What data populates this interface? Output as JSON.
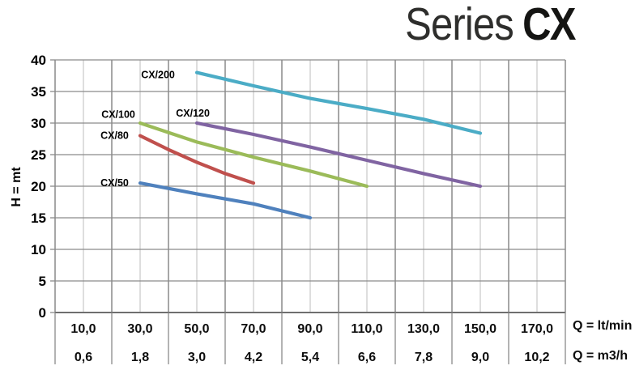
{
  "page_title": {
    "regular": "Series",
    "bold": "CX"
  },
  "chart_data": {
    "type": "line",
    "title": "Series CX",
    "ylabel": "H = mt",
    "xlabel": "Q",
    "x_axis": {
      "min": 0,
      "max": 180,
      "minor_step": 10,
      "major_step": 20
    },
    "y_axis": {
      "min": 0,
      "max": 40,
      "step": 5,
      "tick_labels": [
        "0",
        "5",
        "10",
        "15",
        "20",
        "25",
        "30",
        "35",
        "40"
      ]
    },
    "x_tick_rows": [
      {
        "unit": "Q = lt/min",
        "values": [
          10,
          30,
          50,
          70,
          90,
          110,
          130,
          150,
          170
        ],
        "labels": [
          "10,0",
          "30,0",
          "50,0",
          "70,0",
          "90,0",
          "110,0",
          "130,0",
          "150,0",
          "170,0"
        ]
      },
      {
        "unit": "Q = m3/h",
        "values": [
          0.6,
          1.8,
          3.0,
          4.2,
          5.4,
          6.6,
          7.8,
          9.0,
          10.2
        ],
        "labels": [
          "0,6",
          "1,8",
          "3,0",
          "4,2",
          "5,4",
          "6,6",
          "7,8",
          "9,0",
          "10,2"
        ]
      }
    ],
    "grid": {
      "major_color": "#8a8a8a",
      "minor_color": "#c4c4c4",
      "axis_color": "#6f6f6f"
    },
    "series": [
      {
        "name": "CX/50",
        "color": "#4F81BD",
        "label_at": [
          21,
          20.6
        ],
        "points": [
          [
            30,
            20.5
          ],
          [
            50,
            18.8
          ],
          [
            70,
            17.2
          ],
          [
            90,
            15
          ]
        ]
      },
      {
        "name": "CX/80",
        "color": "#C0504D",
        "label_at": [
          21,
          28.1
        ],
        "points": [
          [
            30,
            28
          ],
          [
            40,
            25.8
          ],
          [
            50,
            23.8
          ],
          [
            60,
            22
          ],
          [
            70,
            20.5
          ]
        ]
      },
      {
        "name": "CX/100",
        "color": "#9BBB59",
        "label_at": [
          22.3,
          31.4
        ],
        "points": [
          [
            30,
            30
          ],
          [
            50,
            27
          ],
          [
            70,
            24.6
          ],
          [
            90,
            22.4
          ],
          [
            110,
            20
          ]
        ]
      },
      {
        "name": "CX/120",
        "color": "#8064A2",
        "label_at": [
          48.6,
          31.6
        ],
        "points": [
          [
            50,
            30
          ],
          [
            70,
            28.2
          ],
          [
            90,
            26.2
          ],
          [
            110,
            24.1
          ],
          [
            130,
            22
          ],
          [
            150,
            20
          ]
        ]
      },
      {
        "name": "CX/200",
        "color": "#4BACC6",
        "label_at": [
          36.3,
          37.7
        ],
        "points": [
          [
            50,
            38
          ],
          [
            70,
            35.9
          ],
          [
            90,
            33.9
          ],
          [
            110,
            32.3
          ],
          [
            130,
            30.6
          ],
          [
            150,
            28.4
          ]
        ]
      }
    ]
  }
}
